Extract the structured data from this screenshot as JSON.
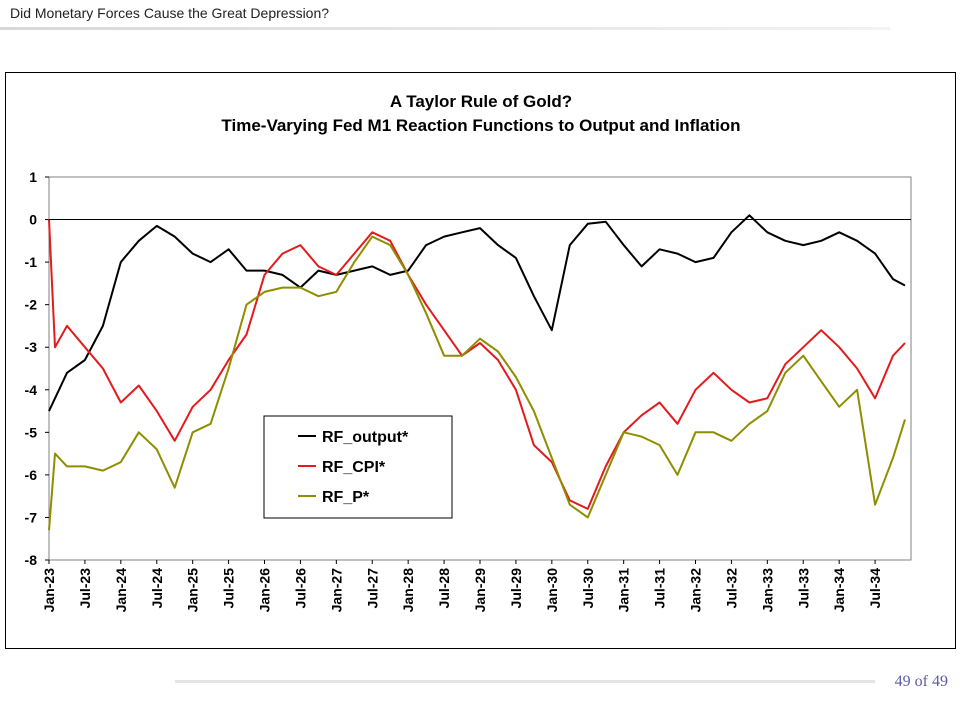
{
  "slide": {
    "header": "Did Monetary Forces Cause the Great Depression?",
    "page_label": "49 of 49"
  },
  "chart_data": {
    "type": "line",
    "title": "A Taylor Rule of Gold?",
    "subtitle": "Time-Varying Fed M1 Reaction Functions to Output and Inflation",
    "xlabel": "",
    "ylabel": "",
    "ylim": [
      -8,
      1
    ],
    "yticks": [
      1,
      0,
      -1,
      -2,
      -3,
      -4,
      -5,
      -6,
      -7,
      -8
    ],
    "xlim": [
      "1923-01",
      "1934-12"
    ],
    "xtick_labels": [
      "Jan-23",
      "Jul-23",
      "Jan-24",
      "Jul-24",
      "Jan-25",
      "Jul-25",
      "Jan-26",
      "Jul-26",
      "Jan-27",
      "Jul-27",
      "Jan-28",
      "Jul-28",
      "Jan-29",
      "Jul-29",
      "Jan-30",
      "Jul-30",
      "Jan-31",
      "Jul-31",
      "Jan-32",
      "Jul-32",
      "Jan-33",
      "Jul-33",
      "Jan-34",
      "Jul-34"
    ],
    "grid": false,
    "zero_line": true,
    "legend_position": "center-left, inside plot",
    "series": [
      {
        "name": "RF_output*",
        "color": "#000000",
        "x": [
          "1923-01",
          "1923-04",
          "1923-07",
          "1923-10",
          "1924-01",
          "1924-04",
          "1924-07",
          "1924-10",
          "1925-01",
          "1925-04",
          "1925-07",
          "1925-10",
          "1926-01",
          "1926-04",
          "1926-07",
          "1926-10",
          "1927-01",
          "1927-04",
          "1927-07",
          "1927-10",
          "1928-01",
          "1928-04",
          "1928-07",
          "1928-10",
          "1929-01",
          "1929-04",
          "1929-07",
          "1929-10",
          "1930-01",
          "1930-04",
          "1930-07",
          "1930-10",
          "1931-01",
          "1931-04",
          "1931-07",
          "1931-10",
          "1932-01",
          "1932-04",
          "1932-07",
          "1932-10",
          "1933-01",
          "1933-04",
          "1933-07",
          "1933-10",
          "1934-01",
          "1934-04",
          "1934-07",
          "1934-10",
          "1934-12"
        ],
        "y": [
          -4.5,
          -3.6,
          -3.3,
          -2.5,
          -1.0,
          -0.5,
          -0.15,
          -0.4,
          -0.8,
          -1.0,
          -0.7,
          -1.2,
          -1.2,
          -1.3,
          -1.6,
          -1.2,
          -1.3,
          -1.2,
          -1.1,
          -1.3,
          -1.2,
          -0.6,
          -0.4,
          -0.3,
          -0.2,
          -0.6,
          -0.9,
          -1.8,
          -2.6,
          -0.6,
          -0.1,
          -0.05,
          -0.6,
          -1.1,
          -0.7,
          -0.8,
          -1.0,
          -0.9,
          -0.3,
          0.1,
          -0.3,
          -0.5,
          -0.6,
          -0.5,
          -0.3,
          -0.5,
          -0.8,
          -1.4,
          -1.55
        ]
      },
      {
        "name": "RF_CPI*",
        "color": "#e41a1c",
        "x": [
          "1923-01",
          "1923-02",
          "1923-04",
          "1923-07",
          "1923-10",
          "1924-01",
          "1924-04",
          "1924-07",
          "1924-10",
          "1925-01",
          "1925-04",
          "1925-07",
          "1925-10",
          "1926-01",
          "1926-04",
          "1926-07",
          "1926-10",
          "1927-01",
          "1927-04",
          "1927-07",
          "1927-10",
          "1928-01",
          "1928-04",
          "1928-07",
          "1928-10",
          "1929-01",
          "1929-04",
          "1929-07",
          "1929-10",
          "1930-01",
          "1930-04",
          "1930-07",
          "1930-10",
          "1931-01",
          "1931-04",
          "1931-07",
          "1931-10",
          "1932-01",
          "1932-04",
          "1932-07",
          "1932-10",
          "1933-01",
          "1933-04",
          "1933-07",
          "1933-10",
          "1934-01",
          "1934-04",
          "1934-07",
          "1934-10",
          "1934-12"
        ],
        "y": [
          0.0,
          -3.0,
          -2.5,
          -3.0,
          -3.5,
          -4.3,
          -3.9,
          -4.5,
          -5.2,
          -4.4,
          -4.0,
          -3.3,
          -2.7,
          -1.3,
          -0.8,
          -0.6,
          -1.1,
          -1.3,
          -0.8,
          -0.3,
          -0.5,
          -1.3,
          -2.0,
          -2.6,
          -3.2,
          -2.9,
          -3.3,
          -4.0,
          -5.3,
          -5.7,
          -6.6,
          -6.8,
          -5.8,
          -5.0,
          -4.6,
          -4.3,
          -4.8,
          -4.0,
          -3.6,
          -4.0,
          -4.3,
          -4.2,
          -3.4,
          -3.0,
          -2.6,
          -3.0,
          -3.5,
          -4.2,
          -3.2,
          -2.9
        ]
      },
      {
        "name": "RF_P*",
        "color": "#8e8e00",
        "x": [
          "1923-01",
          "1923-02",
          "1923-04",
          "1923-07",
          "1923-10",
          "1924-01",
          "1924-04",
          "1924-07",
          "1924-10",
          "1925-01",
          "1925-04",
          "1925-07",
          "1925-10",
          "1926-01",
          "1926-04",
          "1926-07",
          "1926-10",
          "1927-01",
          "1927-04",
          "1927-07",
          "1927-10",
          "1928-01",
          "1928-04",
          "1928-07",
          "1928-10",
          "1929-01",
          "1929-04",
          "1929-07",
          "1929-10",
          "1930-01",
          "1930-04",
          "1930-07",
          "1930-10",
          "1931-01",
          "1931-04",
          "1931-07",
          "1931-10",
          "1932-01",
          "1932-04",
          "1932-07",
          "1932-10",
          "1933-01",
          "1933-04",
          "1933-07",
          "1933-10",
          "1934-01",
          "1934-04",
          "1934-07",
          "1934-10",
          "1934-12"
        ],
        "y": [
          -7.3,
          -5.5,
          -5.8,
          -5.8,
          -5.9,
          -5.7,
          -5.0,
          -5.4,
          -6.3,
          -5.0,
          -4.8,
          -3.5,
          -2.0,
          -1.7,
          -1.6,
          -1.6,
          -1.8,
          -1.7,
          -1.0,
          -0.4,
          -0.6,
          -1.3,
          -2.2,
          -3.2,
          -3.2,
          -2.8,
          -3.1,
          -3.7,
          -4.5,
          -5.6,
          -6.7,
          -7.0,
          -6.0,
          -5.0,
          -5.1,
          -5.3,
          -6.0,
          -5.0,
          -5.0,
          -5.2,
          -4.8,
          -4.5,
          -3.6,
          -3.2,
          -3.8,
          -4.4,
          -4.0,
          -6.7,
          -5.6,
          -4.7
        ]
      }
    ]
  }
}
